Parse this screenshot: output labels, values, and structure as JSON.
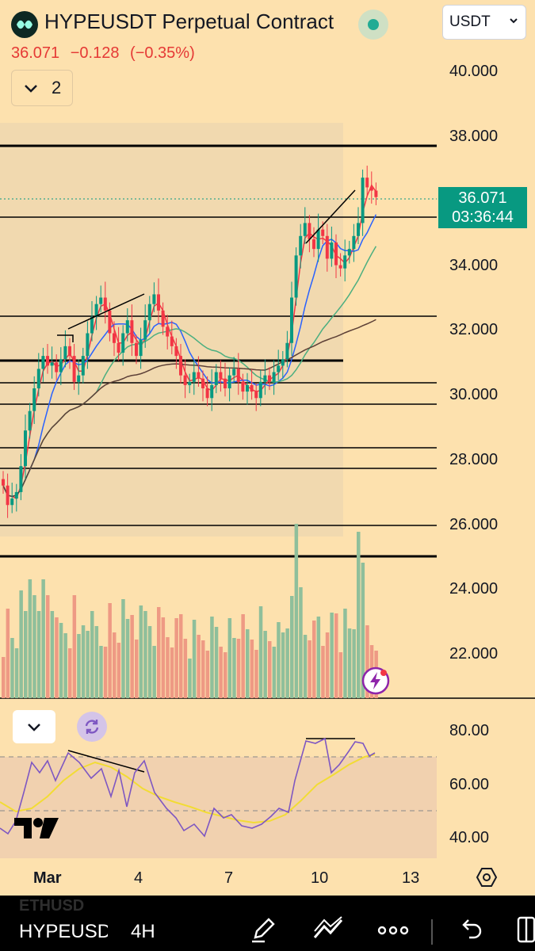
{
  "header": {
    "title": "HYPEUSDT Perpetual Contract",
    "currency": "USDT",
    "quote": {
      "last": "36.071",
      "change": "−0.128",
      "change_pct": "(−0.35%)"
    },
    "indicators_count": "2"
  },
  "price_axis": {
    "labels": [
      "40.000",
      "38.000",
      "34.000",
      "32.000",
      "30.000",
      "28.000",
      "26.000",
      "24.000",
      "22.000"
    ],
    "current_price": "36.071",
    "countdown": "03:36:44"
  },
  "oscillator_axis": {
    "labels": [
      "80.00",
      "60.00",
      "40.00"
    ]
  },
  "time_axis": {
    "labels": [
      "Mar",
      "4",
      "7",
      "10",
      "13"
    ]
  },
  "bottom_bar": {
    "watermark": "ETHUSD",
    "symbol": "HYPEUSDT",
    "interval": "4H"
  },
  "colors": {
    "up": "#089981",
    "down": "#f23645",
    "background": "#fde1ae",
    "oscillator_k": "#7e57c2",
    "oscillator_d": "#f2dc34"
  },
  "icons": {
    "logo": "hyperliquid-logo-icon",
    "live": "live-status-dot-icon",
    "dropdown": "chevron-down-icon",
    "refresh": "refresh-icon",
    "flash": "lightning-icon",
    "settings": "hexagon-settings-icon",
    "draw": "pen-icon",
    "templates": "trend-lines-icon",
    "more": "more-icon",
    "undo": "undo-icon",
    "layout": "layout-icon"
  },
  "chart_data": {
    "type": "candlestick",
    "ylim": [
      20.5,
      41.0
    ],
    "series": [
      {
        "name": "price",
        "values": [
          27.2,
          26.6,
          26.8,
          27.0,
          27.8,
          28.9,
          29.5,
          30.2,
          30.8,
          31.2,
          30.9,
          31.0,
          30.7,
          31.1,
          31.5,
          31.2,
          30.4,
          30.6,
          31.2,
          31.9,
          32.4,
          32.8,
          33.0,
          32.6,
          31.9,
          31.6,
          31.3,
          31.9,
          32.3,
          31.6,
          31.2,
          31.7,
          32.3,
          32.8,
          33.1,
          32.6,
          32.1,
          31.8,
          31.5,
          31.2,
          30.6,
          30.3,
          30.4,
          30.7,
          30.5,
          30.2,
          29.9,
          30.3,
          30.7,
          30.5,
          30.2,
          30.6,
          30.8,
          30.4,
          30.1,
          30.3,
          30.1,
          29.9,
          30.4,
          30.6,
          30.4,
          30.7,
          30.9,
          31.1,
          31.6,
          33.0,
          34.3,
          34.9,
          35.3,
          34.8,
          34.5,
          35.1,
          34.9,
          34.2,
          34.7,
          34.0,
          33.9,
          34.3,
          34.5,
          34.9,
          35.3,
          36.7,
          36.4,
          36.3,
          36.1
        ]
      }
    ]
  }
}
